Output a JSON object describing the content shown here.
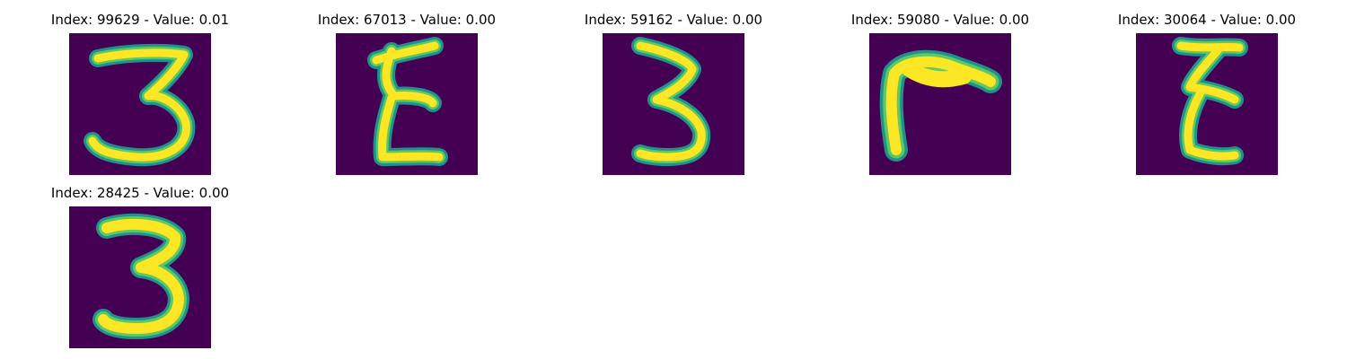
{
  "colors": {
    "background": "#440154",
    "foreground": "#fde725",
    "edge_inner": "#5ec962",
    "edge_outer": "#21918c",
    "title_text": "#000000"
  },
  "panels": [
    {
      "title": "Index: 99629 - Value: 0.01",
      "digit": "3"
    },
    {
      "title": "Index: 67013 - Value: 0.00",
      "digit": "zigzag"
    },
    {
      "title": "Index: 59162 - Value: 0.00",
      "digit": "3"
    },
    {
      "title": "Index: 59080 - Value: 0.00",
      "digit": "bent-stroke"
    },
    {
      "title": "Index: 30064 - Value: 0.00",
      "digit": "zigzag"
    },
    {
      "title": "Index: 28425 - Value: 0.00",
      "digit": "3"
    }
  ]
}
